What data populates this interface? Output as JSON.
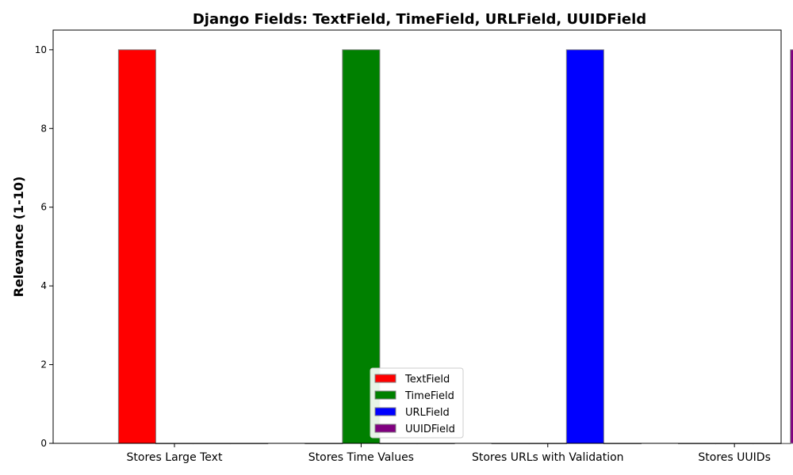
{
  "chart_data": {
    "type": "bar",
    "title": "Django Fields: TextField, TimeField, URLField, UUIDField",
    "xlabel": "",
    "ylabel": "Relevance (1-10)",
    "ylim": [
      0,
      10.5
    ],
    "yticks": [
      0,
      2,
      4,
      6,
      8,
      10
    ],
    "grid": false,
    "legend_position": "bottom-center",
    "categories": [
      "Stores Large Text",
      "Stores Time Values",
      "Stores URLs with Validation",
      "Stores UUIDs"
    ],
    "series": [
      {
        "name": "TextField",
        "color": "#ff0000",
        "values": [
          10,
          0,
          0,
          0
        ]
      },
      {
        "name": "TimeField",
        "color": "#008000",
        "values": [
          0,
          10,
          0,
          0
        ]
      },
      {
        "name": "URLField",
        "color": "#0000ff",
        "values": [
          0,
          0,
          10,
          0
        ]
      },
      {
        "name": "UUIDField",
        "color": "#800080",
        "values": [
          0,
          0,
          0,
          10
        ]
      }
    ]
  }
}
